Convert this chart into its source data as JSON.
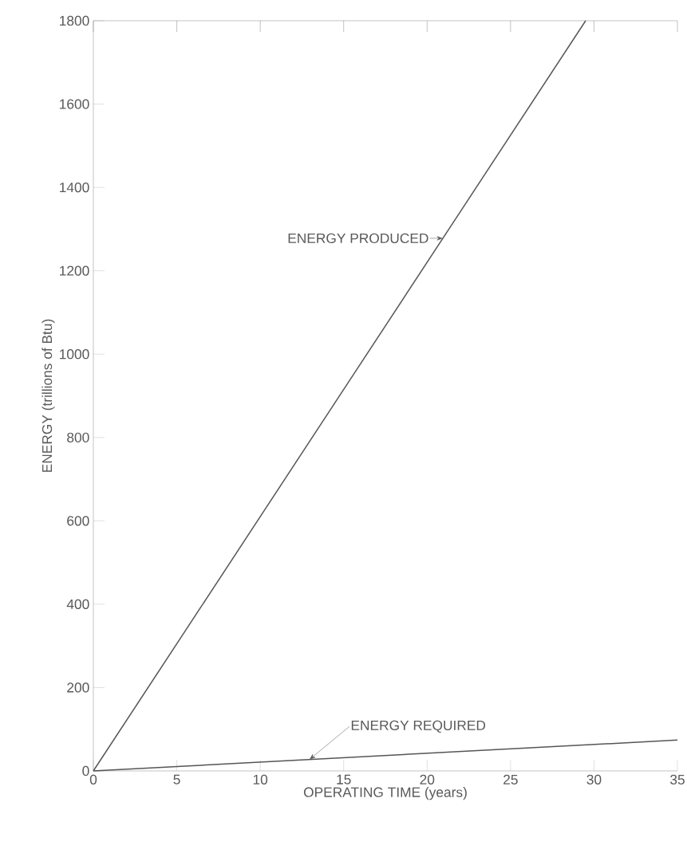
{
  "chart_data": {
    "type": "line",
    "xlabel": "OPERATING TIME (years)",
    "ylabel": "ENERGY (trillions of Btu)",
    "xlim": [
      0,
      35
    ],
    "xticks": [
      0,
      5,
      10,
      15,
      20,
      25,
      30,
      35
    ],
    "ylim": [
      0,
      1800
    ],
    "yticks": [
      0,
      200,
      400,
      600,
      800,
      1000,
      1200,
      1400,
      1600,
      1800
    ],
    "series": [
      {
        "name": "ENERGY PRODUCED",
        "color": "#555555",
        "x": [
          0,
          29.5
        ],
        "values": [
          0,
          1800
        ]
      },
      {
        "name": "ENERGY REQUIRED",
        "color": "#555555",
        "x": [
          0,
          35
        ],
        "values": [
          0,
          74
        ]
      }
    ]
  }
}
